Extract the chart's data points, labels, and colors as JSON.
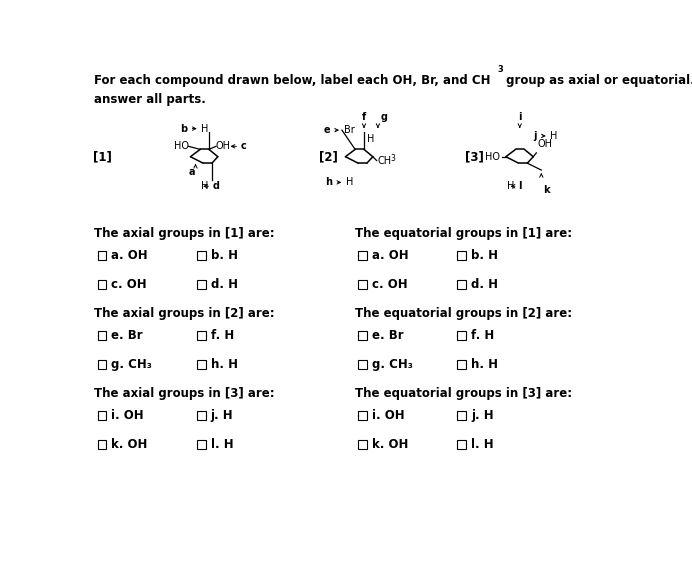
{
  "bg_color": "#ffffff",
  "title1": "For each compound drawn below, label each OH, Br, and CH",
  "title1_sub": "3",
  "title1_end": " group as axial or equatorial. Be sure to",
  "title2": "answer all parts.",
  "sections_left": [
    {
      "header": "The axial groups in [1] are:",
      "rows": [
        [
          "a. OH",
          "b. H"
        ],
        [
          "c. OH",
          "d. H"
        ]
      ]
    },
    {
      "header": "The axial groups in [2] are:",
      "rows": [
        [
          "e. Br",
          "f. H"
        ],
        [
          "g. CH₃",
          "h. H"
        ]
      ]
    },
    {
      "header": "The axial groups in [3] are:",
      "rows": [
        [
          "i. OH",
          "j. H"
        ],
        [
          "k. OH",
          "l. H"
        ]
      ]
    }
  ],
  "sections_right": [
    {
      "header": "The equatorial groups in [1] are:",
      "rows": [
        [
          "a. OH",
          "b. H"
        ],
        [
          "c. OH",
          "d. H"
        ]
      ]
    },
    {
      "header": "The equatorial groups in [2] are:",
      "rows": [
        [
          "e. Br",
          "f. H"
        ],
        [
          "g. CH₃",
          "h. H"
        ]
      ]
    },
    {
      "header": "The equatorial groups in [3] are:",
      "rows": [
        [
          "i. OH",
          "j. H"
        ],
        [
          "k. OH",
          "l. H"
        ]
      ]
    }
  ]
}
